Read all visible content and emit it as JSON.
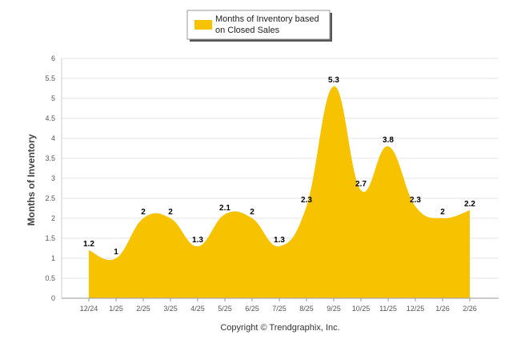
{
  "chart_data": {
    "type": "area",
    "categories": [
      "12/24",
      "1/25",
      "2/25",
      "3/25",
      "4/25",
      "5/25",
      "6/25",
      "7/25",
      "8/25",
      "9/25",
      "10/25",
      "11/25",
      "12/25",
      "1/26",
      "2/26"
    ],
    "series": [
      {
        "name": "Months of Inventory based on Closed Sales",
        "values": [
          1.2,
          1,
          2,
          2,
          1.3,
          2.1,
          2,
          1.3,
          2.3,
          5.3,
          2.7,
          3.8,
          2.3,
          2,
          2.2
        ],
        "data_labels": [
          "1.2",
          "1",
          "2",
          "2",
          "1.3",
          "2.1",
          "2",
          "1.3",
          "2.3",
          "5.3",
          "2.7",
          "3.8",
          "2.3",
          "2",
          "2.2"
        ],
        "color": "#F7C200"
      }
    ],
    "ylabel": "Months of Inventory",
    "xlabel": "",
    "ylim": [
      0,
      6
    ],
    "yticks": [
      "0",
      "0.5",
      "1",
      "1.5",
      "2",
      "2.5",
      "3",
      "3.5",
      "4",
      "4.5",
      "5",
      "5.5",
      "6"
    ],
    "grid": true,
    "legend": {
      "position": "top-center",
      "line1": "Months of Inventory based",
      "line2": "on Closed Sales"
    }
  },
  "footer": {
    "credit": "Copyright © Trendgraphix, Inc."
  },
  "colors": {
    "area": "#F7C200",
    "grid": "#E6E6E6",
    "axis": "#999999"
  }
}
